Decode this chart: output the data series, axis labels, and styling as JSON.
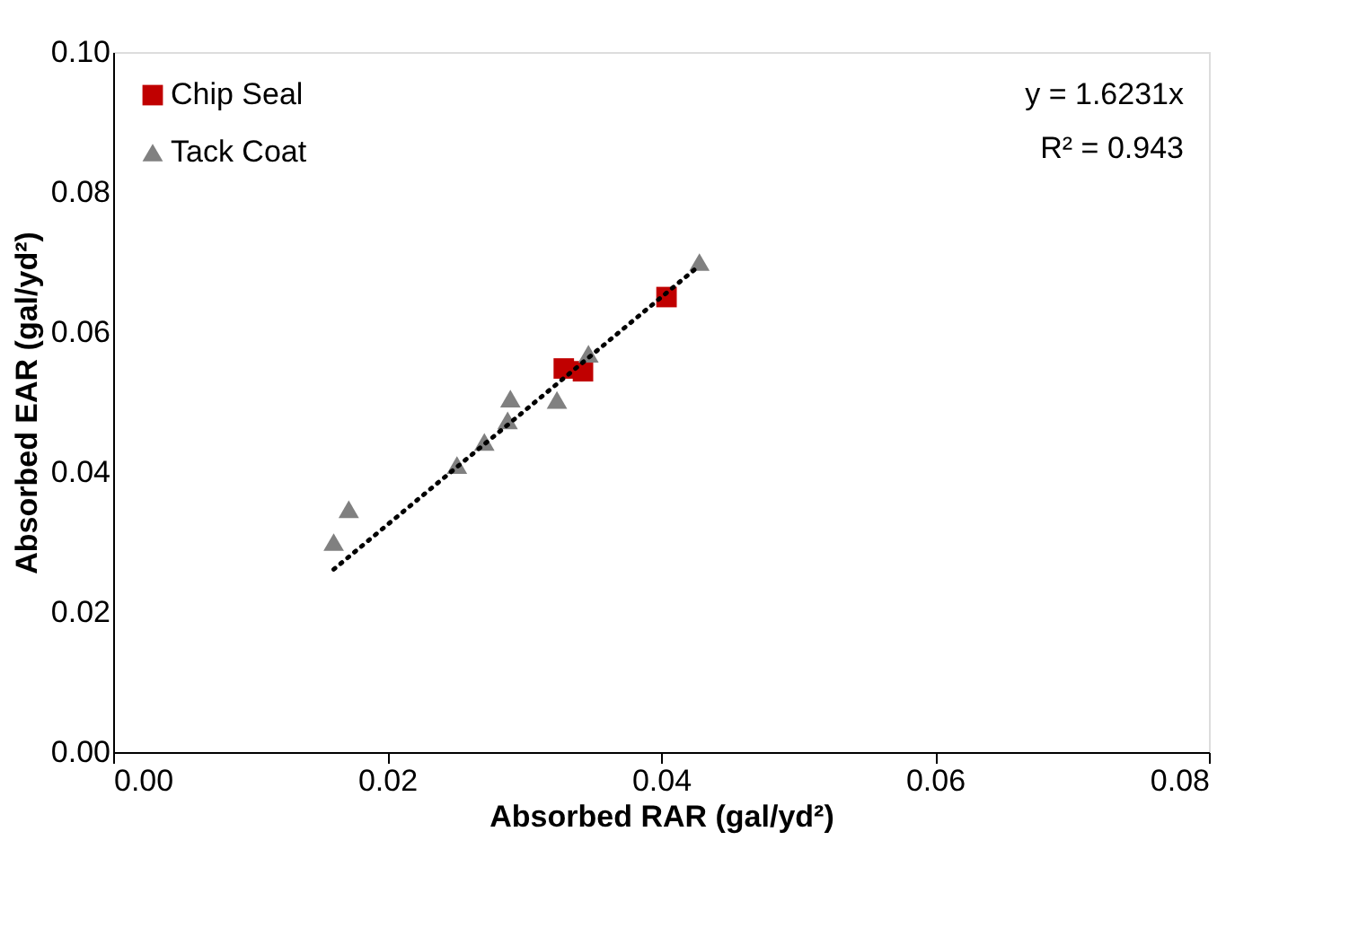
{
  "chart_data": {
    "type": "scatter",
    "xlabel": "Absorbed RAR (gal/yd²)",
    "ylabel": "Absorbed EAR (gal/yd²)",
    "xlim": [
      0,
      0.08
    ],
    "xticks": [
      {
        "value": 0,
        "label": "0.00"
      },
      {
        "value": 0.02,
        "label": "0.02"
      },
      {
        "value": 0.04,
        "label": "0.04"
      },
      {
        "value": 0.06,
        "label": "0.06"
      },
      {
        "value": 0.08,
        "label": "0.08"
      }
    ],
    "ylim": [
      0,
      0.1
    ],
    "yticks": [
      {
        "value": 0,
        "label": "0.00"
      },
      {
        "value": 0.02,
        "label": "0.02"
      },
      {
        "value": 0.04,
        "label": "0.04"
      },
      {
        "value": 0.06,
        "label": "0.06"
      },
      {
        "value": 0.08,
        "label": "0.08"
      },
      {
        "value": 0.1,
        "label": "0.10"
      }
    ],
    "grid": false,
    "legend": "top left",
    "annotations": [
      "y = 1.6231x",
      "R² = 0.943"
    ],
    "series": [
      {
        "name": "Chip Seal",
        "color": "#c00000",
        "marker": "square",
        "x": [
          0.0404,
          0.0329,
          0.0343
        ],
        "values": [
          0.065,
          0.0548,
          0.0544
        ]
      },
      {
        "name": "Tack Coat",
        "color": "#808080",
        "marker": "triangle",
        "x": [
          0.0428,
          0.0347,
          0.029,
          0.0324,
          0.0288,
          0.0271,
          0.0251,
          0.0172,
          0.0161
        ],
        "values": [
          0.07,
          0.0569,
          0.0505,
          0.0503,
          0.0474,
          0.0443,
          0.041,
          0.0347,
          0.03
        ]
      },
      {
        "type": "line",
        "color": "#000000",
        "line_style": "dotted",
        "marker": "none",
        "x": [
          0.0161,
          0.0428
        ],
        "values": [
          0.0261,
          0.0695
        ]
      }
    ]
  }
}
